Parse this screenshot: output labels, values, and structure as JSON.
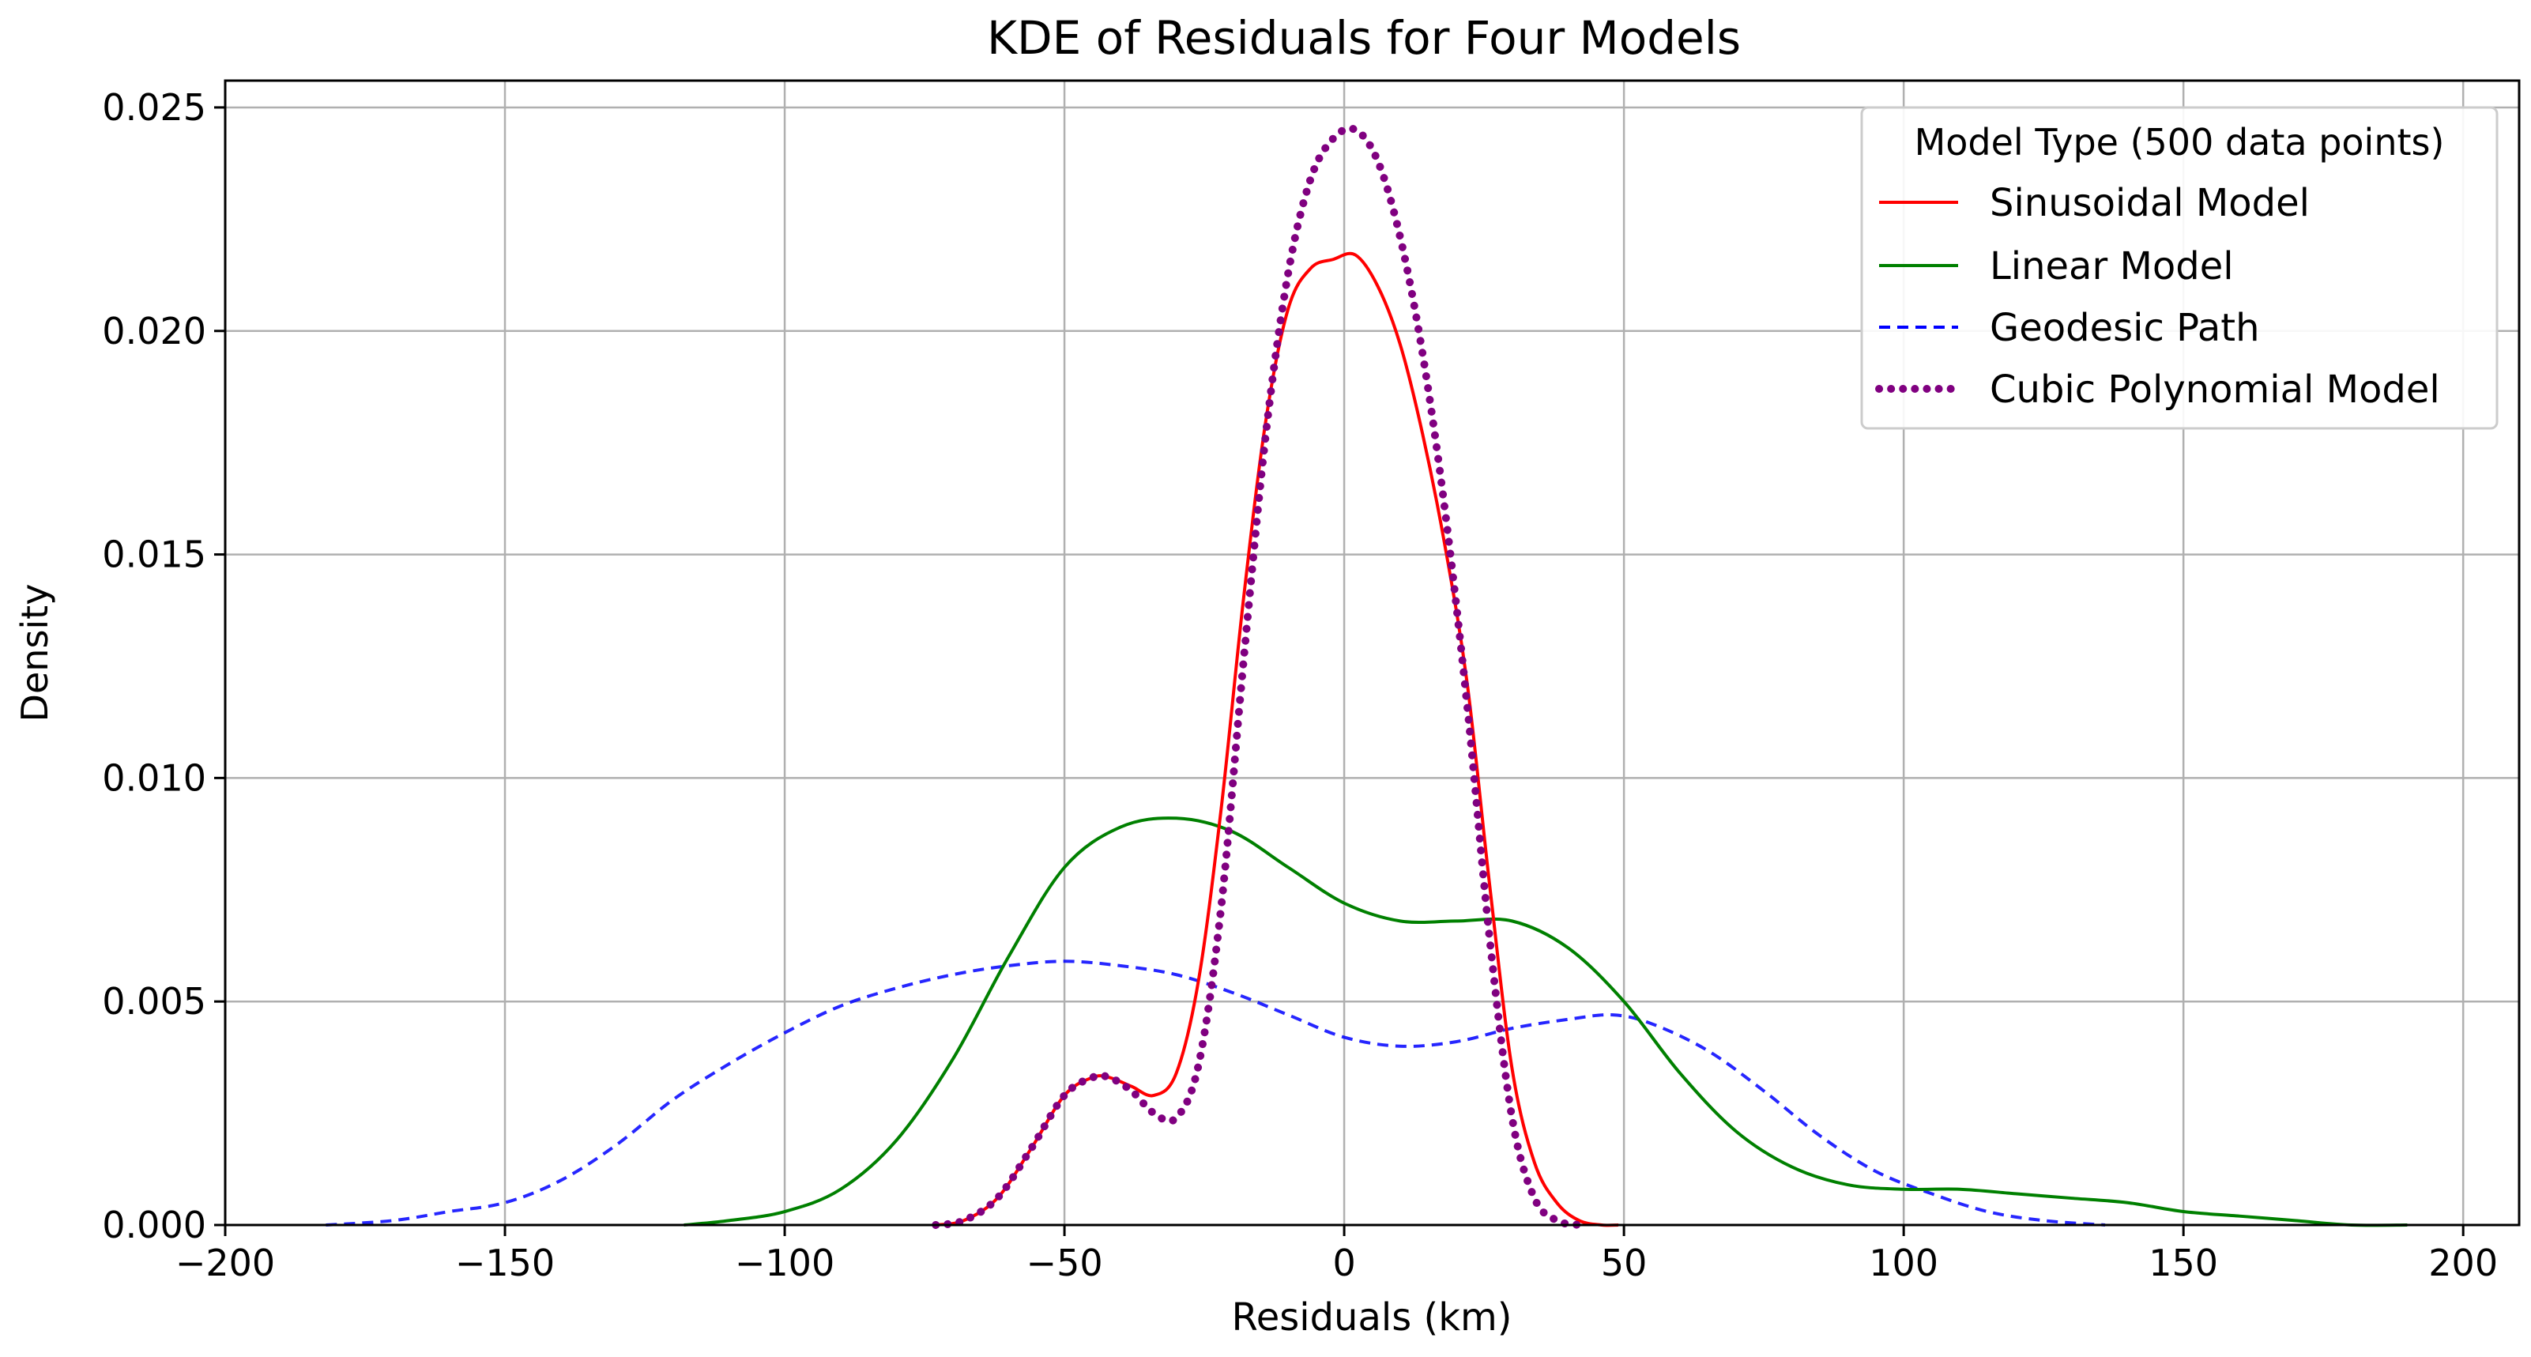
{
  "chart_data": {
    "type": "line",
    "title": "KDE of Residuals for Four Models",
    "xlabel": "Residuals (km)",
    "ylabel": "Density",
    "xlim": [
      -200,
      210
    ],
    "ylim": [
      0,
      0.0256
    ],
    "grid": true,
    "xticks": [
      -200,
      -150,
      -100,
      -50,
      0,
      50,
      100,
      150,
      200
    ],
    "xtick_labels": [
      "−200",
      "−150",
      "−100",
      "−50",
      "0",
      "50",
      "100",
      "150",
      "200"
    ],
    "yticks": [
      0,
      0.005,
      0.01,
      0.015,
      0.02,
      0.025
    ],
    "ytick_labels": [
      "0.000",
      "0.005",
      "0.010",
      "0.015",
      "0.020",
      "0.025"
    ],
    "legend": {
      "title": "Model Type (500 data points)",
      "location": "top-right"
    },
    "series": [
      {
        "name": "Sinusoidal Model",
        "color": "#ff0000",
        "style": "solid",
        "x": [
          -73,
          -68,
          -62,
          -56,
          -50,
          -45,
          -42,
          -38,
          -34,
          -30,
          -26,
          -22,
          -18,
          -14,
          -10,
          -6,
          -2,
          2,
          6,
          10,
          14,
          18,
          22,
          26,
          30,
          34,
          38,
          42,
          46,
          49
        ],
        "y": [
          0.0,
          0.0001,
          0.0006,
          0.0017,
          0.0029,
          0.0033,
          0.0033,
          0.0031,
          0.0029,
          0.0034,
          0.0055,
          0.0093,
          0.014,
          0.018,
          0.0205,
          0.0214,
          0.0216,
          0.0217,
          0.021,
          0.0197,
          0.0177,
          0.0152,
          0.0121,
          0.0076,
          0.0035,
          0.0014,
          0.0005,
          0.0001,
          0.0,
          0.0
        ]
      },
      {
        "name": "Linear Model",
        "color": "#008000",
        "style": "solid",
        "x": [
          -118,
          -110,
          -100,
          -90,
          -80,
          -70,
          -60,
          -50,
          -40,
          -30,
          -20,
          -10,
          0,
          10,
          20,
          30,
          40,
          50,
          60,
          70,
          80,
          90,
          100,
          110,
          120,
          130,
          140,
          150,
          160,
          170,
          180,
          190
        ],
        "y": [
          0.0,
          0.0001,
          0.0003,
          0.0008,
          0.0019,
          0.0037,
          0.006,
          0.008,
          0.0089,
          0.0091,
          0.0088,
          0.008,
          0.0072,
          0.0068,
          0.0068,
          0.0068,
          0.0062,
          0.005,
          0.0034,
          0.0021,
          0.0013,
          0.0009,
          0.0008,
          0.0008,
          0.0007,
          0.0006,
          0.0005,
          0.0003,
          0.0002,
          0.0001,
          0.0,
          0.0
        ]
      },
      {
        "name": "Geodesic Path",
        "color": "#0000ff",
        "style": "dashed",
        "x": [
          -182,
          -170,
          -160,
          -150,
          -140,
          -130,
          -120,
          -110,
          -100,
          -90,
          -80,
          -70,
          -60,
          -50,
          -40,
          -30,
          -20,
          -10,
          0,
          10,
          20,
          30,
          40,
          48,
          55,
          65,
          75,
          85,
          95,
          105,
          115,
          125,
          136
        ],
        "y": [
          0.0,
          0.0001,
          0.0003,
          0.0005,
          0.001,
          0.0018,
          0.0028,
          0.0036,
          0.0043,
          0.0049,
          0.0053,
          0.0056,
          0.0058,
          0.0059,
          0.0058,
          0.0056,
          0.0052,
          0.0047,
          0.0042,
          0.004,
          0.0041,
          0.0044,
          0.0046,
          0.0047,
          0.0045,
          0.0039,
          0.003,
          0.002,
          0.0012,
          0.0007,
          0.0003,
          0.0001,
          0.0
        ]
      },
      {
        "name": "Cubic Polynomial Model",
        "color": "#800080",
        "style": "dotted",
        "x": [
          -73,
          -68,
          -62,
          -56,
          -50,
          -45,
          -42,
          -38,
          -34,
          -30,
          -26,
          -22,
          -18,
          -14,
          -10,
          -6,
          -2,
          2,
          6,
          10,
          14,
          18,
          22,
          26,
          30,
          34,
          38,
          42
        ],
        "y": [
          0.0,
          0.0001,
          0.0006,
          0.0017,
          0.0029,
          0.0033,
          0.0033,
          0.003,
          0.0025,
          0.0024,
          0.0036,
          0.0071,
          0.0126,
          0.0177,
          0.0213,
          0.0234,
          0.0243,
          0.0245,
          0.0238,
          0.0221,
          0.0195,
          0.016,
          0.0116,
          0.0064,
          0.0024,
          0.0006,
          0.0001,
          0.0
        ]
      }
    ]
  }
}
